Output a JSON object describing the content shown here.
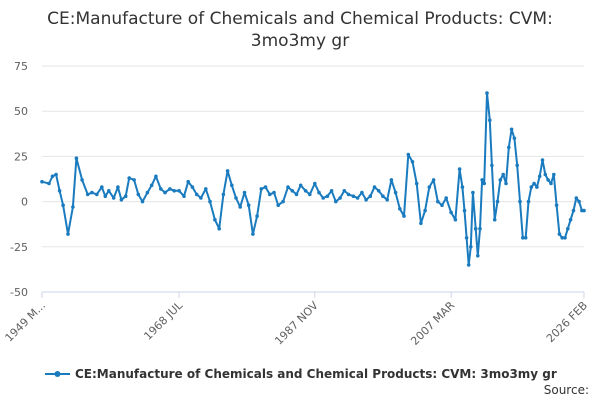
{
  "chart_data": {
    "type": "line",
    "title_lines": [
      "CE:Manufacture of Chemicals and Chemical Products: CVM:",
      "3mo3my gr"
    ],
    "ylim": [
      -50,
      75
    ],
    "y_ticks": [
      75,
      50,
      25,
      0,
      -25,
      -50
    ],
    "x_range": [
      1949.0,
      2026.1
    ],
    "x_ticks": [
      {
        "label": "1949 M...",
        "x": 1949.0
      },
      {
        "label": "1968 JUL",
        "x": 1968.5
      },
      {
        "label": "1987 NOV",
        "x": 1987.8
      },
      {
        "label": "2007 MAR",
        "x": 2007.2
      },
      {
        "label": "2026 FEB",
        "x": 2026.1
      }
    ],
    "color": "#1a7bbf",
    "series": [
      {
        "name": "CE:Manufacture of Chemicals and Chemical Products: CVM: 3mo3my gr",
        "x": [
          1949.0,
          1950.0,
          1950.5,
          1951.0,
          1951.5,
          1952.0,
          1952.7,
          1953.4,
          1953.9,
          1954.7,
          1955.5,
          1956.1,
          1956.8,
          1957.5,
          1958.0,
          1958.5,
          1959.2,
          1959.8,
          1960.3,
          1960.9,
          1961.4,
          1962.1,
          1962.7,
          1963.3,
          1964.0,
          1964.6,
          1965.2,
          1965.9,
          1966.5,
          1967.2,
          1967.8,
          1968.5,
          1969.2,
          1969.8,
          1970.4,
          1971.0,
          1971.6,
          1972.3,
          1972.9,
          1973.6,
          1974.2,
          1974.8,
          1975.4,
          1976.0,
          1976.6,
          1977.2,
          1977.8,
          1978.4,
          1979.0,
          1979.6,
          1980.2,
          1980.8,
          1981.4,
          1982.0,
          1982.6,
          1983.3,
          1984.0,
          1984.6,
          1985.2,
          1985.8,
          1986.5,
          1987.1,
          1987.8,
          1988.4,
          1989.0,
          1989.6,
          1990.2,
          1990.8,
          1991.4,
          1992.0,
          1992.6,
          1993.3,
          1993.9,
          1994.5,
          1995.1,
          1995.7,
          1996.3,
          1996.9,
          1997.5,
          1998.1,
          1998.7,
          1999.3,
          1999.9,
          2000.5,
          2001.1,
          2001.7,
          2002.3,
          2002.9,
          2003.5,
          2004.1,
          2004.7,
          2005.3,
          2005.9,
          2006.5,
          2007.2,
          2007.8,
          2008.4,
          2008.8,
          2009.1,
          2009.4,
          2009.7,
          2010.0,
          2010.3,
          2010.7,
          2011.0,
          2011.3,
          2011.6,
          2011.9,
          2012.3,
          2012.7,
          2013.0,
          2013.4,
          2013.8,
          2014.2,
          2014.6,
          2015.0,
          2015.4,
          2015.8,
          2016.2,
          2016.6,
          2017.0,
          2017.4,
          2017.8,
          2018.2,
          2018.6,
          2019.0,
          2019.4,
          2019.8,
          2020.2,
          2020.6,
          2021.0,
          2021.4,
          2021.8,
          2022.2,
          2022.6,
          2023.0,
          2023.4,
          2023.8,
          2024.2,
          2024.6,
          2025.0,
          2025.4,
          2025.8,
          2026.1
        ],
        "values": [
          11,
          10,
          14,
          15,
          6,
          -2,
          -18,
          -3,
          24,
          12,
          4,
          5,
          4,
          8,
          3,
          6,
          2,
          8,
          1,
          3,
          13,
          12,
          4,
          0,
          5,
          9,
          14,
          7,
          5,
          7,
          6,
          6,
          3,
          11,
          8,
          4,
          2,
          7,
          0,
          -10,
          -15,
          4,
          17,
          9,
          2,
          -3,
          5,
          -2,
          -18,
          -8,
          7,
          8,
          4,
          5,
          -2,
          0,
          8,
          6,
          4,
          9,
          6,
          4,
          10,
          5,
          2,
          3,
          6,
          0,
          2,
          6,
          4,
          3,
          2,
          5,
          1,
          3,
          8,
          6,
          3,
          1,
          12,
          5,
          -4,
          -8,
          26,
          22,
          10,
          -12,
          -5,
          8,
          12,
          0,
          -2,
          2,
          -6,
          -10,
          18,
          8,
          -5,
          -20,
          -35,
          -25,
          5,
          -15,
          -30,
          -15,
          12,
          10,
          60,
          45,
          20,
          -10,
          0,
          12,
          15,
          10,
          30,
          40,
          35,
          20,
          0,
          -20,
          -20,
          0,
          8,
          10,
          8,
          14,
          23,
          15,
          12,
          10,
          15,
          -2,
          -18,
          -20,
          -20,
          -15,
          -10,
          -5,
          2,
          0,
          -5,
          -5
        ]
      }
    ]
  },
  "legend": {
    "label": "CE:Manufacture of Chemicals and Chemical Products: CVM: 3mo3my gr"
  },
  "source": {
    "label": "Source:"
  }
}
